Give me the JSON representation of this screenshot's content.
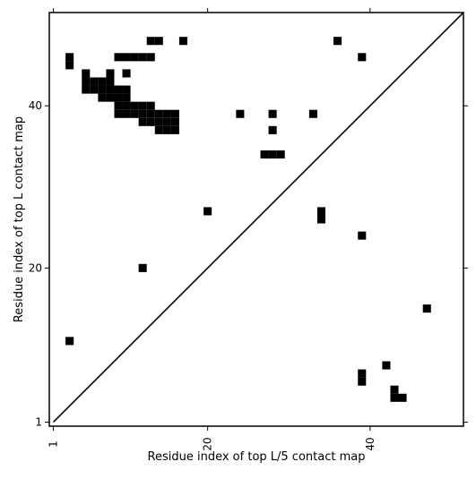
{
  "chart_data": {
    "type": "heatmap",
    "title": "",
    "xlabel": "Residue index of top L/5 contact map",
    "ylabel": "Residue index of top L contact map",
    "xlim": [
      0.5,
      51.5
    ],
    "ylim": [
      0.5,
      51.5
    ],
    "xticks": [
      1,
      20,
      40
    ],
    "yticks": [
      1,
      20,
      40
    ],
    "diagonal": true,
    "cell_color": "#000000",
    "upper_left_cells": [
      [
        3,
        45
      ],
      [
        3,
        46
      ],
      [
        5,
        42
      ],
      [
        5,
        43
      ],
      [
        5,
        44
      ],
      [
        6,
        42
      ],
      [
        6,
        43
      ],
      [
        7,
        41
      ],
      [
        7,
        42
      ],
      [
        7,
        43
      ],
      [
        8,
        41
      ],
      [
        8,
        42
      ],
      [
        8,
        43
      ],
      [
        8,
        44
      ],
      [
        9,
        39
      ],
      [
        9,
        40
      ],
      [
        9,
        41
      ],
      [
        9,
        42
      ],
      [
        9,
        46
      ],
      [
        10,
        39
      ],
      [
        10,
        40
      ],
      [
        10,
        41
      ],
      [
        10,
        42
      ],
      [
        10,
        44
      ],
      [
        10,
        46
      ],
      [
        11,
        39
      ],
      [
        11,
        40
      ],
      [
        11,
        46
      ],
      [
        12,
        38
      ],
      [
        12,
        39
      ],
      [
        12,
        40
      ],
      [
        12,
        46
      ],
      [
        13,
        38
      ],
      [
        13,
        39
      ],
      [
        13,
        40
      ],
      [
        13,
        46
      ],
      [
        13,
        48
      ],
      [
        14,
        37
      ],
      [
        14,
        38
      ],
      [
        14,
        39
      ],
      [
        14,
        48
      ],
      [
        15,
        37
      ],
      [
        15,
        38
      ],
      [
        15,
        39
      ],
      [
        16,
        37
      ],
      [
        16,
        38
      ],
      [
        16,
        39
      ],
      [
        17,
        48
      ],
      [
        20,
        27
      ],
      [
        24,
        39
      ],
      [
        27,
        34
      ],
      [
        28,
        34
      ],
      [
        28,
        39
      ],
      [
        28,
        37
      ],
      [
        29,
        34
      ],
      [
        33,
        39
      ],
      [
        36,
        48
      ],
      [
        39,
        46
      ]
    ],
    "lower_right_cells": [
      [
        3,
        11
      ],
      [
        12,
        20
      ],
      [
        39,
        24
      ],
      [
        34,
        26
      ],
      [
        34,
        27
      ],
      [
        47,
        15
      ],
      [
        39,
        6
      ],
      [
        39,
        7
      ],
      [
        42,
        8
      ],
      [
        43,
        4
      ],
      [
        43,
        5
      ],
      [
        44,
        4
      ]
    ]
  }
}
